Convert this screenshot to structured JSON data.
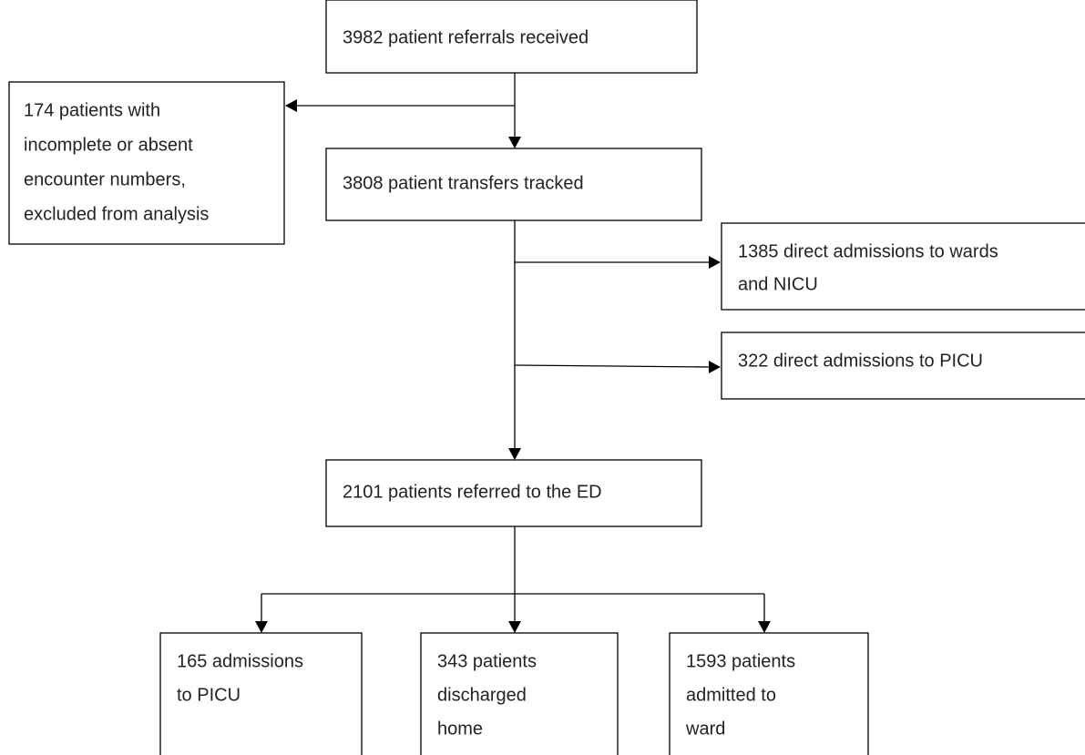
{
  "nodes": [
    {
      "lines": [
        "3982 patient referrals received"
      ]
    },
    {
      "lines": [
        "174 patients with",
        "incomplete or absent",
        "encounter numbers,",
        "excluded from analysis"
      ]
    },
    {
      "lines": [
        "3808 patient transfers tracked"
      ]
    },
    {
      "lines": [
        "1385 direct admissions to wards",
        "and NICU"
      ]
    },
    {
      "lines": [
        "322 direct admissions to PICU"
      ]
    },
    {
      "lines": [
        "2101 patients referred to the ED"
      ]
    },
    {
      "lines": [
        "165 admissions",
        "to PICU"
      ]
    },
    {
      "lines": [
        "343 patients",
        "discharged",
        "home"
      ]
    },
    {
      "lines": [
        "1593 patients",
        "admitted to",
        "ward"
      ]
    }
  ]
}
